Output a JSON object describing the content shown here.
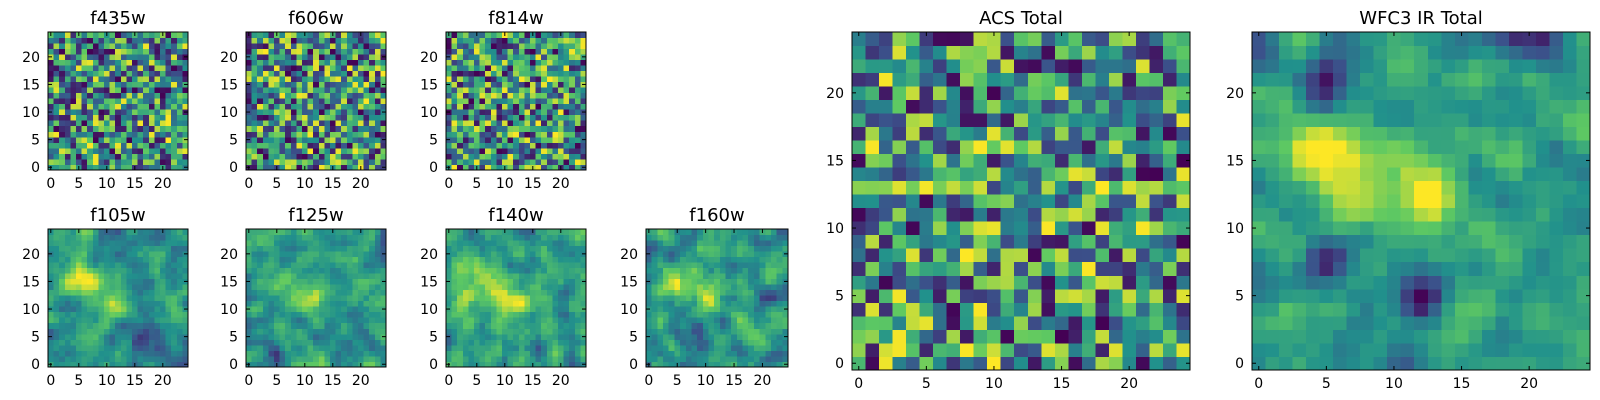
{
  "colormap": {
    "name": "viridis",
    "stops": [
      "#440154",
      "#3b528b",
      "#21918c",
      "#5ec962",
      "#fde725"
    ]
  },
  "chart_data": [
    {
      "type": "heatmap",
      "title": "f435w",
      "grid": [
        25,
        25
      ],
      "xlim": [
        0,
        24
      ],
      "ylim": [
        0,
        24
      ],
      "xticks": [
        0,
        5,
        10,
        15,
        20
      ],
      "yticks": [
        0,
        5,
        10,
        15,
        20
      ],
      "xlabel": "",
      "ylabel": "",
      "texture": "pixel noise",
      "seed": 11,
      "smooth": 0,
      "blobs": []
    },
    {
      "type": "heatmap",
      "title": "f606w",
      "grid": [
        25,
        25
      ],
      "xlim": [
        0,
        24
      ],
      "ylim": [
        0,
        24
      ],
      "xticks": [
        0,
        5,
        10,
        15,
        20
      ],
      "yticks": [
        0,
        5,
        10,
        15,
        20
      ],
      "xlabel": "",
      "ylabel": "",
      "texture": "pixel noise",
      "seed": 23,
      "smooth": 0,
      "blobs": []
    },
    {
      "type": "heatmap",
      "title": "f814w",
      "grid": [
        25,
        25
      ],
      "xlim": [
        0,
        24
      ],
      "ylim": [
        0,
        24
      ],
      "xticks": [
        0,
        5,
        10,
        15,
        20
      ],
      "yticks": [
        0,
        5,
        10,
        15,
        20
      ],
      "xlabel": "",
      "ylabel": "",
      "texture": "pixel noise",
      "seed": 37,
      "smooth": 0,
      "blobs": []
    },
    {
      "type": "heatmap",
      "title": "f105w",
      "grid": [
        25,
        25
      ],
      "xlim": [
        0,
        24
      ],
      "ylim": [
        0,
        24
      ],
      "xticks": [
        0,
        5,
        10,
        15,
        20
      ],
      "yticks": [
        0,
        5,
        10,
        15,
        20
      ],
      "xlabel": "",
      "ylabel": "",
      "texture": "smoothed noise",
      "seed": 41,
      "smooth": 1,
      "blobs": [
        [
          5,
          15,
          2.2,
          0.35
        ],
        [
          11,
          11,
          2.2,
          0.35
        ],
        [
          15,
          5,
          2.0,
          -0.25
        ],
        [
          19,
          3,
          1.8,
          -0.2
        ]
      ]
    },
    {
      "type": "heatmap",
      "title": "f125w",
      "grid": [
        25,
        25
      ],
      "xlim": [
        0,
        24
      ],
      "ylim": [
        0,
        24
      ],
      "xticks": [
        0,
        5,
        10,
        15,
        20
      ],
      "yticks": [
        0,
        5,
        10,
        15,
        20
      ],
      "xlabel": "",
      "ylabel": "",
      "texture": "smoothed noise",
      "seed": 53,
      "smooth": 1,
      "blobs": [
        [
          5,
          15,
          2.0,
          0.25
        ],
        [
          11,
          12,
          2.0,
          0.25
        ],
        [
          5,
          2,
          1.2,
          -0.35
        ]
      ]
    },
    {
      "type": "heatmap",
      "title": "f140w",
      "grid": [
        25,
        25
      ],
      "xlim": [
        0,
        24
      ],
      "ylim": [
        0,
        24
      ],
      "xticks": [
        0,
        5,
        10,
        15,
        20
      ],
      "yticks": [
        0,
        5,
        10,
        15,
        20
      ],
      "xlabel": "",
      "ylabel": "",
      "texture": "smoothed noise",
      "seed": 67,
      "smooth": 1,
      "blobs": [
        [
          5,
          16,
          2.5,
          0.3
        ],
        [
          11,
          12,
          2.5,
          0.3
        ],
        [
          3,
          8,
          2.0,
          0.25
        ]
      ]
    },
    {
      "type": "heatmap",
      "title": "f160w",
      "grid": [
        25,
        25
      ],
      "xlim": [
        0,
        24
      ],
      "ylim": [
        0,
        24
      ],
      "xticks": [
        0,
        5,
        10,
        15,
        20
      ],
      "yticks": [
        0,
        5,
        10,
        15,
        20
      ],
      "xlabel": "",
      "ylabel": "",
      "texture": "smoothed noise",
      "seed": 79,
      "smooth": 1,
      "blobs": [
        [
          5,
          15,
          2.2,
          0.3
        ],
        [
          11,
          13,
          2.2,
          0.35
        ],
        [
          20,
          13,
          1.5,
          -0.3
        ]
      ]
    },
    {
      "type": "heatmap",
      "title": "ACS Total",
      "grid": [
        25,
        25
      ],
      "xlim": [
        0,
        24
      ],
      "ylim": [
        0,
        24
      ],
      "xticks": [
        0,
        5,
        10,
        15,
        20
      ],
      "yticks": [
        0,
        5,
        10,
        15,
        20
      ],
      "xlabel": "",
      "ylabel": "",
      "texture": "pixel noise",
      "seed": 91,
      "smooth": 0,
      "blobs": [
        [
          5,
          15,
          1.5,
          0.15
        ]
      ]
    },
    {
      "type": "heatmap",
      "title": "WFC3 IR Total",
      "grid": [
        25,
        25
      ],
      "xlim": [
        0,
        24
      ],
      "ylim": [
        0,
        24
      ],
      "xticks": [
        0,
        5,
        10,
        15,
        20
      ],
      "yticks": [
        0,
        5,
        10,
        15,
        20
      ],
      "xlabel": "",
      "ylabel": "",
      "texture": "smoothed noise",
      "seed": 103,
      "smooth": 1,
      "blobs": [
        [
          5,
          16,
          2.2,
          0.55
        ],
        [
          12,
          12,
          2.0,
          0.55
        ],
        [
          12,
          5,
          1.5,
          -0.55
        ],
        [
          5,
          20,
          1.5,
          -0.45
        ],
        [
          5,
          8,
          1.2,
          -0.45
        ],
        [
          20,
          24,
          2.0,
          -0.3
        ]
      ]
    }
  ]
}
